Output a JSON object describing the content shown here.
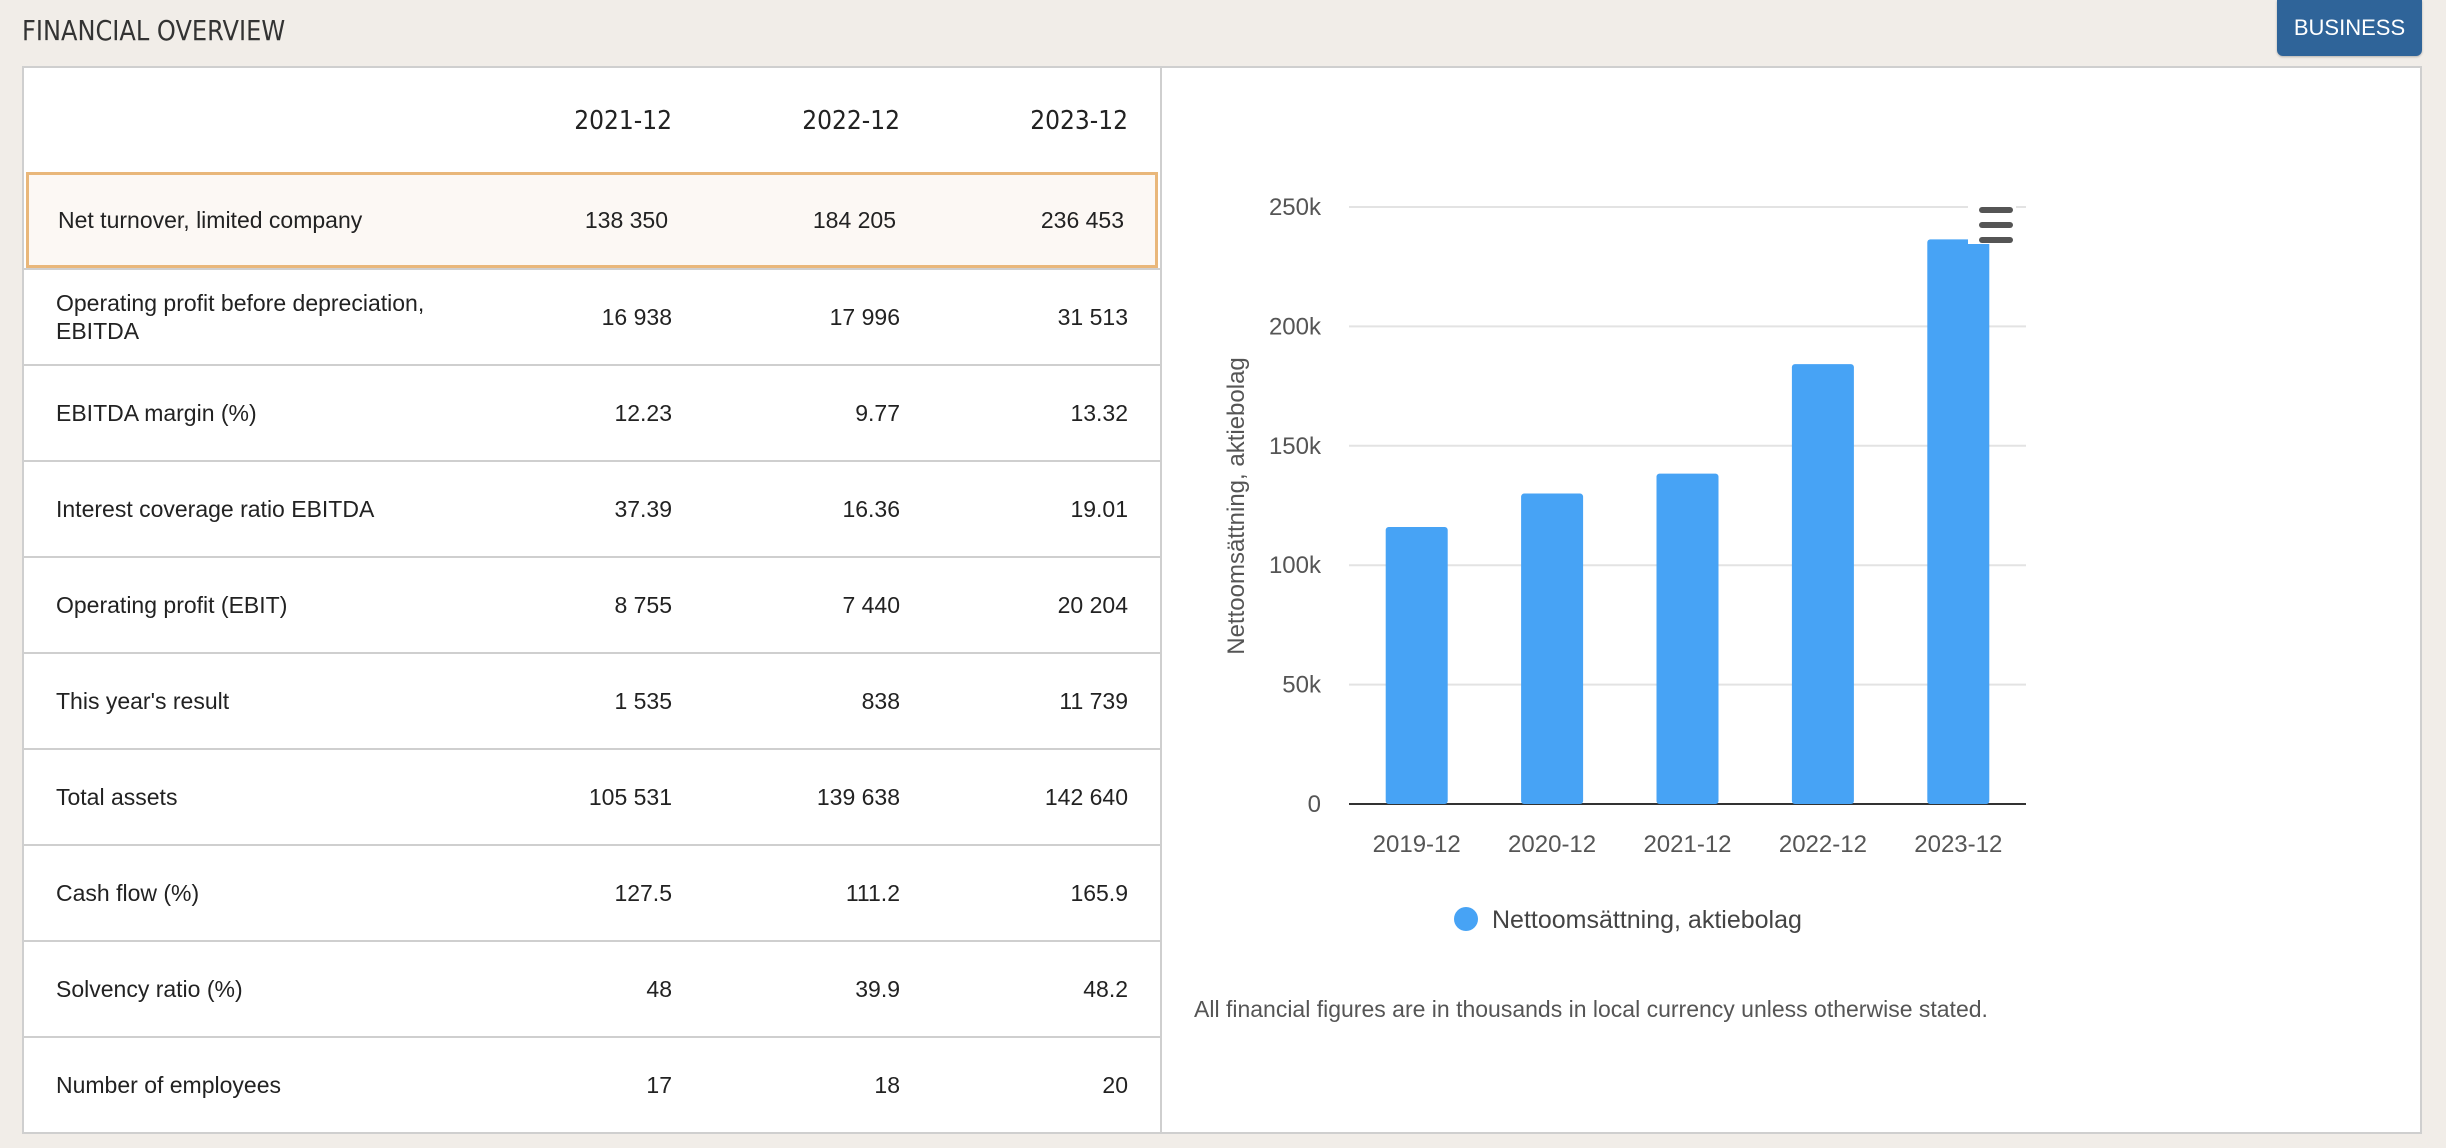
{
  "header": {
    "title": "FINANCIAL OVERVIEW",
    "business_button": "BUSINESS"
  },
  "table": {
    "columns": [
      "2021-12",
      "2022-12",
      "2023-12"
    ],
    "rows": [
      {
        "label": "Net turnover, limited company",
        "values": [
          "138 350",
          "184 205",
          "236 453"
        ],
        "highlighted": true
      },
      {
        "label": "Operating profit before depreciation, EBITDA",
        "values": [
          "16 938",
          "17 996",
          "31 513"
        ]
      },
      {
        "label": "EBITDA margin (%)",
        "values": [
          "12.23",
          "9.77",
          "13.32"
        ]
      },
      {
        "label": "Interest coverage ratio EBITDA",
        "values": [
          "37.39",
          "16.36",
          "19.01"
        ]
      },
      {
        "label": "Operating profit (EBIT)",
        "values": [
          "8 755",
          "7 440",
          "20 204"
        ]
      },
      {
        "label": "This year's result",
        "values": [
          "1 535",
          "838",
          "11 739"
        ]
      },
      {
        "label": "Total assets",
        "values": [
          "105 531",
          "139 638",
          "142 640"
        ]
      },
      {
        "label": "Cash flow (%)",
        "values": [
          "127.5",
          "111.2",
          "165.9"
        ]
      },
      {
        "label": "Solvency ratio (%)",
        "values": [
          "48",
          "39.9",
          "48.2"
        ]
      },
      {
        "label": "Number of employees",
        "values": [
          "17",
          "18",
          "20"
        ]
      }
    ]
  },
  "chart_data": {
    "type": "bar",
    "categories": [
      "2019-12",
      "2020-12",
      "2021-12",
      "2022-12",
      "2023-12"
    ],
    "series": [
      {
        "name": "Nettoomsättning, aktiebolag",
        "values": [
          116000,
          130000,
          138350,
          184205,
          236453
        ]
      }
    ],
    "ylabel": "Nettoomsättning, aktiebolag",
    "ylim": [
      0,
      250000
    ],
    "yticks": [
      0,
      50000,
      100000,
      150000,
      200000,
      250000
    ],
    "ytick_labels": [
      "0",
      "50k",
      "100k",
      "150k",
      "200k",
      "250k"
    ],
    "grid": true,
    "legend": "bottom",
    "bar_color": "#47a3f5"
  },
  "footnote": "All financial figures are in thousands in local currency unless otherwise stated.",
  "menu_icon": "hamburger-menu-icon"
}
